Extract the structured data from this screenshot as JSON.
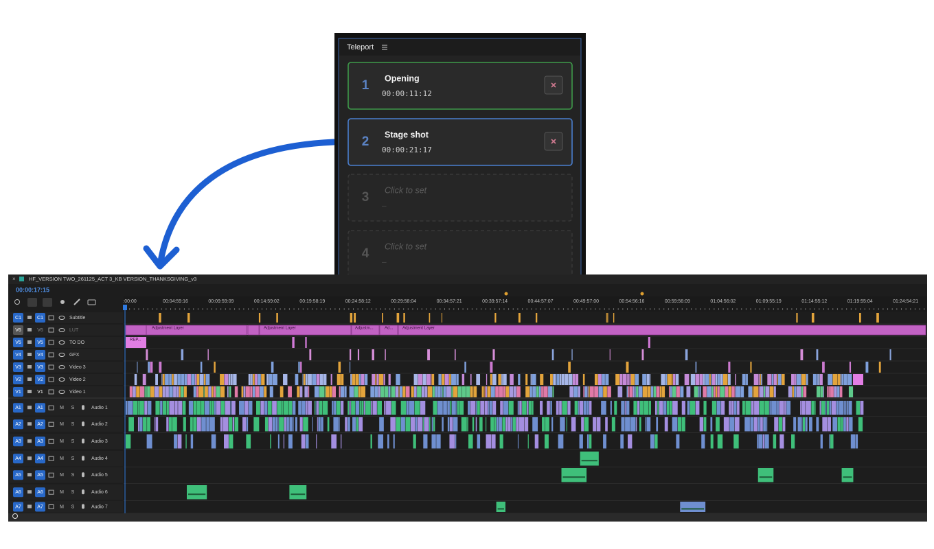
{
  "teleport": {
    "title": "Teleport",
    "slots": [
      {
        "number": "1",
        "name": "Opening",
        "timecode": "00:00:11:12"
      },
      {
        "number": "2",
        "name": "Stage shot",
        "timecode": "00:00:21:17"
      },
      {
        "number": "3",
        "name": "Click to set",
        "timecode": "–"
      },
      {
        "number": "4",
        "name": "Click to set",
        "timecode": "–"
      }
    ]
  },
  "timeline": {
    "sequence": "HF_VERSION TWO_261125_ACT 3_KB VERSION_THANKSGIVING_v3",
    "timecode": "00:00:17:15",
    "ruler": [
      ":00:00",
      "00:04:59:16",
      "00:09:59:09",
      "00:14:59:02",
      "00:19:58:19",
      "00:24:58:12",
      "00:29:58:04",
      "00:34:57:21",
      "00:39:57:14",
      "00:44:57:07",
      "00:49:57:00",
      "00:54:56:16",
      "00:59:56:09",
      "01:04:56:02",
      "01:09:55:19",
      "01:14:55:12",
      "01:19:55:04",
      "01:24:54:21"
    ],
    "video_tracks": [
      {
        "source": "C1",
        "target": "C1",
        "name": "Subtitle"
      },
      {
        "source": "V6",
        "target": "V6",
        "name": "LUT"
      },
      {
        "source": "V5",
        "target": "V5",
        "name": "TO DO"
      },
      {
        "source": "V4",
        "target": "V4",
        "name": "GFX"
      },
      {
        "source": "V3",
        "target": "V3",
        "name": "Video 3"
      },
      {
        "source": "V2",
        "target": "V2",
        "name": "Video 2"
      },
      {
        "source": "V1",
        "target": "V1",
        "name": "Video 1"
      }
    ],
    "audio_tracks": [
      {
        "source": "A1",
        "target": "A1",
        "mute": "M",
        "solo": "S",
        "name": "Audio 1"
      },
      {
        "source": "A2",
        "target": "A2",
        "mute": "M",
        "solo": "S",
        "name": "Audio 2"
      },
      {
        "source": "A3",
        "target": "A3",
        "mute": "M",
        "solo": "S",
        "name": "Audio 3"
      },
      {
        "source": "A4",
        "target": "A4",
        "mute": "M",
        "solo": "S",
        "name": "Audio 4"
      },
      {
        "source": "A5",
        "target": "A5",
        "mute": "M",
        "solo": "S",
        "name": "Audio 5"
      },
      {
        "source": "A6",
        "target": "A6",
        "mute": "M",
        "solo": "S",
        "name": "Audio 6"
      },
      {
        "source": "A7",
        "target": "A7",
        "mute": "M",
        "solo": "S",
        "name": "Audio 7"
      }
    ],
    "clip_labels": [
      "Adjustment Layer",
      "Adjustment Layer",
      "Adjustm...",
      "Ad...",
      "Adjustment Layer",
      "REP..."
    ]
  }
}
